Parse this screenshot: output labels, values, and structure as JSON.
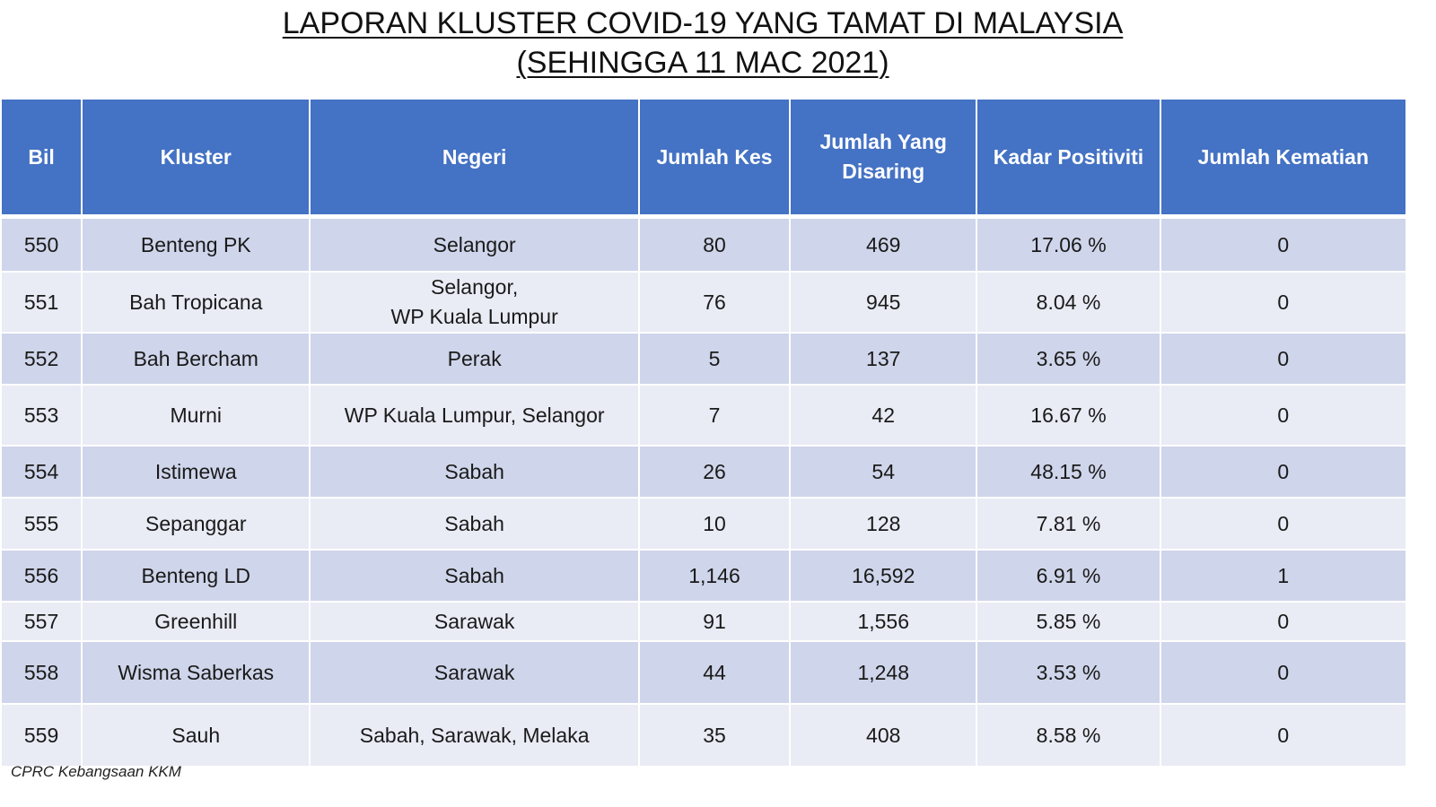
{
  "title": {
    "line1": "LAPORAN KLUSTER COVID-19 YANG TAMAT DI MALAYSIA",
    "line2": "(SEHINGGA 11 MAC 2021)"
  },
  "table": {
    "headers": [
      "Bil",
      "Kluster",
      "Negeri",
      "Jumlah Kes",
      "Jumlah Yang Disaring",
      "Kadar Positiviti",
      "Jumlah Kematian"
    ],
    "rows": [
      {
        "bil": "550",
        "kluster": "Benteng PK",
        "negeri": [
          "Selangor"
        ],
        "kes": "80",
        "disaring": "469",
        "positiviti": "17.06 %",
        "kematian": "0"
      },
      {
        "bil": "551",
        "kluster": "Bah Tropicana",
        "negeri": [
          "Selangor,",
          "WP Kuala Lumpur"
        ],
        "kes": "76",
        "disaring": "945",
        "positiviti": "8.04 %",
        "kematian": "0"
      },
      {
        "bil": "552",
        "kluster": "Bah Bercham",
        "negeri": [
          "Perak"
        ],
        "kes": "5",
        "disaring": "137",
        "positiviti": "3.65 %",
        "kematian": "0"
      },
      {
        "bil": "553",
        "kluster": "Murni",
        "negeri": [
          "WP Kuala Lumpur, Selangor"
        ],
        "kes": "7",
        "disaring": "42",
        "positiviti": "16.67 %",
        "kematian": "0"
      },
      {
        "bil": "554",
        "kluster": "Istimewa",
        "negeri": [
          "Sabah"
        ],
        "kes": "26",
        "disaring": "54",
        "positiviti": "48.15 %",
        "kematian": "0"
      },
      {
        "bil": "555",
        "kluster": "Sepanggar",
        "negeri": [
          "Sabah"
        ],
        "kes": "10",
        "disaring": "128",
        "positiviti": "7.81 %",
        "kematian": "0"
      },
      {
        "bil": "556",
        "kluster": "Benteng LD",
        "negeri": [
          "Sabah"
        ],
        "kes": "1,146",
        "disaring": "16,592",
        "positiviti": "6.91 %",
        "kematian": "1"
      },
      {
        "bil": "557",
        "kluster": "Greenhill",
        "negeri": [
          "Sarawak"
        ],
        "kes": "91",
        "disaring": "1,556",
        "positiviti": "5.85 %",
        "kematian": "0"
      },
      {
        "bil": "558",
        "kluster": "Wisma Saberkas",
        "negeri": [
          "Sarawak"
        ],
        "kes": "44",
        "disaring": "1,248",
        "positiviti": "3.53 %",
        "kematian": "0"
      },
      {
        "bil": "559",
        "kluster": "Sauh",
        "negeri": [
          "Sabah, Sarawak, Melaka"
        ],
        "kes": "35",
        "disaring": "408",
        "positiviti": "8.58 %",
        "kematian": "0"
      }
    ]
  },
  "source": "CPRC Kebangsaan KKM",
  "colors": {
    "header_bg": "#4472c4",
    "row_dark": "#cfd5ea",
    "row_light": "#e9ebf5"
  }
}
